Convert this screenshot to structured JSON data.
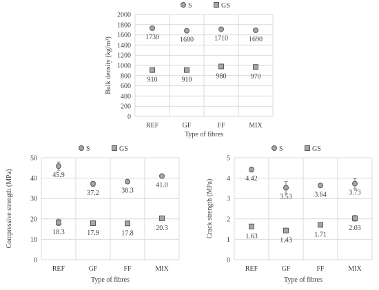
{
  "colors": {
    "grid": "#d9d9d9",
    "axis_text": "#404040",
    "marker_fill": "#a6a6a6",
    "marker_stroke": "#595959",
    "error_bar": "#808080"
  },
  "chart_data": [
    {
      "type": "scatter",
      "title": "",
      "xlabel": "Type of fibres",
      "ylabel": "Bulk density (kg/m³)",
      "categories": [
        "REF",
        "GF",
        "FF",
        "MIX"
      ],
      "ylim": [
        0,
        2000
      ],
      "yticks": [
        0,
        200,
        400,
        600,
        800,
        1000,
        1200,
        1400,
        1600,
        1800,
        2000
      ],
      "ytick_labels": [
        "0",
        "200",
        "400",
        "600",
        "800",
        "1000",
        "1200",
        "1400",
        "1600",
        "1800",
        "2000"
      ],
      "grid": true,
      "legend_position": "top",
      "series": [
        {
          "name": "S",
          "marker": "circle",
          "values": [
            1730,
            1680,
            1710,
            1690
          ],
          "labels": [
            "1730",
            "1680",
            "1710",
            "1690"
          ],
          "errors": [
            0,
            0,
            0,
            0
          ]
        },
        {
          "name": "GS",
          "marker": "square",
          "values": [
            910,
            910,
            980,
            970
          ],
          "labels": [
            "910",
            "910",
            "980",
            "970"
          ],
          "errors": [
            0,
            0,
            0,
            0
          ]
        }
      ]
    },
    {
      "type": "scatter",
      "title": "",
      "xlabel": "Type of fibres",
      "ylabel": "Compressive strength (MPa)",
      "categories": [
        "REF",
        "GF",
        "FF",
        "MIX"
      ],
      "ylim": [
        0,
        50
      ],
      "yticks": [
        0,
        10,
        20,
        30,
        40,
        50
      ],
      "ytick_labels": [
        "0",
        "10",
        "20",
        "30",
        "40",
        "50"
      ],
      "grid": true,
      "legend_position": "top",
      "series": [
        {
          "name": "S",
          "marker": "circle",
          "values": [
            45.9,
            37.2,
            38.3,
            41.0
          ],
          "labels": [
            "45.9",
            "37.2",
            "38.3",
            "41.0"
          ],
          "errors": [
            2.0,
            1.2,
            0.6,
            0.8
          ]
        },
        {
          "name": "GS",
          "marker": "square",
          "values": [
            18.3,
            17.9,
            17.8,
            20.3
          ],
          "labels": [
            "18.3",
            "17.9",
            "17.8",
            "20.3"
          ],
          "errors": [
            1.6,
            0.4,
            0.3,
            0.6
          ]
        }
      ]
    },
    {
      "type": "scatter",
      "title": "",
      "xlabel": "Type of fibres",
      "ylabel": "Crack strength (MPa)",
      "categories": [
        "REF",
        "GF",
        "FF",
        "MIX"
      ],
      "ylim": [
        0,
        5
      ],
      "yticks": [
        0,
        1,
        2,
        3,
        4,
        5
      ],
      "ytick_labels": [
        "0",
        "1",
        "2",
        "3",
        "4",
        "5"
      ],
      "grid": true,
      "legend_position": "top",
      "series": [
        {
          "name": "S",
          "marker": "circle",
          "values": [
            4.42,
            3.53,
            3.64,
            3.73
          ],
          "labels": [
            "4.42",
            "3.53",
            "3.64",
            "3.73"
          ],
          "errors": [
            0.12,
            0.3,
            0.05,
            0.25
          ]
        },
        {
          "name": "GS",
          "marker": "square",
          "values": [
            1.63,
            1.43,
            1.71,
            2.03
          ],
          "labels": [
            "1.63",
            "1.43",
            "1.71",
            "2.03"
          ],
          "errors": [
            0.05,
            0.06,
            0.05,
            0.14
          ]
        }
      ]
    }
  ]
}
